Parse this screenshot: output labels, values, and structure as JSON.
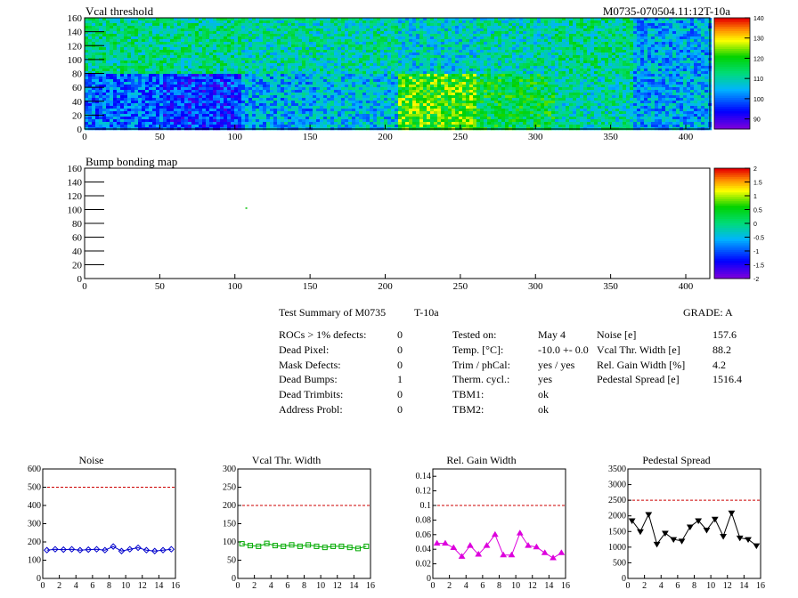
{
  "maps": [
    {
      "title": "Vcal threshold",
      "corner": "M0735-070504.11:12T-10a",
      "xticks": [
        0,
        50,
        100,
        150,
        200,
        250,
        300,
        350,
        400
      ],
      "yticks": [
        0,
        20,
        40,
        60,
        80,
        100,
        120,
        140,
        160
      ],
      "xlim": [
        0,
        416
      ],
      "ylim": [
        0,
        160
      ],
      "palette_labels": [
        "140",
        "130",
        "120",
        "110",
        "100",
        "90"
      ],
      "palette_range": [
        85,
        140
      ]
    },
    {
      "title": "Bump bonding map",
      "corner": "",
      "xticks": [
        0,
        50,
        100,
        150,
        200,
        250,
        300,
        350,
        400
      ],
      "yticks": [
        0,
        20,
        40,
        60,
        80,
        100,
        120,
        140,
        160
      ],
      "xlim": [
        0,
        416
      ],
      "ylim": [
        0,
        160
      ],
      "palette_labels": [
        "2",
        "1.5",
        "1",
        "0.5",
        "0",
        "-0.5",
        "-1",
        "-1.5",
        "-2"
      ],
      "palette_range": [
        -2,
        2
      ]
    }
  ],
  "summary": {
    "title": "Test Summary of M0735",
    "temp_tag": "T-10a",
    "grade": "GRADE:  A",
    "defects": [
      {
        "label": "ROCs > 1% defects:",
        "value": "0"
      },
      {
        "label": "Dead Pixel:",
        "value": "0"
      },
      {
        "label": "Mask Defects:",
        "value": "0"
      },
      {
        "label": "Dead Bumps:",
        "value": "1"
      },
      {
        "label": "Dead Trimbits:",
        "value": "0"
      },
      {
        "label": "Address Probl:",
        "value": "0"
      }
    ],
    "conditions": [
      {
        "label": "Tested on:",
        "value": "May 4"
      },
      {
        "label": "Temp. [°C]:",
        "value": "-10.0 +- 0.0"
      },
      {
        "label": "Trim / phCal:",
        "value": "yes / yes"
      },
      {
        "label": "Therm. cycl.:",
        "value": "yes"
      },
      {
        "label": "TBM1:",
        "value": "ok"
      },
      {
        "label": "TBM2:",
        "value": "ok"
      }
    ],
    "results": [
      {
        "label": "Noise [e]",
        "value": "157.6"
      },
      {
        "label": "Vcal Thr. Width [e]",
        "value": "88.2"
      },
      {
        "label": "Rel. Gain Width [%]",
        "value": "4.2"
      },
      {
        "label": "Pedestal Spread [e]",
        "value": "1516.4"
      }
    ]
  },
  "chart_data": [
    {
      "type": "line",
      "title": "Noise",
      "x": [
        0.5,
        1.5,
        2.5,
        3.5,
        4.5,
        5.5,
        6.5,
        7.5,
        8.5,
        9.5,
        10.5,
        11.5,
        12.5,
        13.5,
        14.5,
        15.5
      ],
      "values": [
        155,
        160,
        158,
        160,
        155,
        158,
        160,
        155,
        175,
        150,
        160,
        168,
        155,
        150,
        155,
        160
      ],
      "ylim": [
        0,
        600
      ],
      "yticks": [
        0,
        100,
        200,
        300,
        400,
        500,
        600
      ],
      "yticklabels": [
        "0",
        "100",
        "200",
        "300",
        "400",
        "500",
        "600"
      ],
      "xticks": [
        0,
        2,
        4,
        6,
        8,
        10,
        12,
        14,
        16
      ],
      "threshold": 500,
      "color": "#0000cc",
      "marker": "diamond"
    },
    {
      "type": "line",
      "title": "Vcal Thr. Width",
      "x": [
        0.5,
        1.5,
        2.5,
        3.5,
        4.5,
        5.5,
        6.5,
        7.5,
        8.5,
        9.5,
        10.5,
        11.5,
        12.5,
        13.5,
        14.5,
        15.5
      ],
      "values": [
        95,
        90,
        88,
        96,
        90,
        88,
        92,
        88,
        92,
        88,
        85,
        88,
        88,
        85,
        82,
        88
      ],
      "ylim": [
        0,
        300
      ],
      "yticks": [
        0,
        50,
        100,
        150,
        200,
        250,
        300
      ],
      "yticklabels": [
        "0",
        "50",
        "100",
        "150",
        "200",
        "250",
        "300"
      ],
      "xticks": [
        0,
        2,
        4,
        6,
        8,
        10,
        12,
        14,
        16
      ],
      "threshold": 200,
      "color": "#00aa00",
      "marker": "square"
    },
    {
      "type": "line",
      "title": "Rel. Gain Width",
      "x": [
        0.5,
        1.5,
        2.5,
        3.5,
        4.5,
        5.5,
        6.5,
        7.5,
        8.5,
        9.5,
        10.5,
        11.5,
        12.5,
        13.5,
        14.5,
        15.5
      ],
      "values": [
        0.048,
        0.048,
        0.042,
        0.03,
        0.045,
        0.033,
        0.045,
        0.06,
        0.032,
        0.032,
        0.062,
        0.045,
        0.043,
        0.035,
        0.028,
        0.035
      ],
      "ylim": [
        0,
        0.15
      ],
      "yticks": [
        0,
        0.02,
        0.04,
        0.06,
        0.08,
        0.1,
        0.12,
        0.14
      ],
      "yticklabels": [
        "0",
        "0.02",
        "0.04",
        "0.06",
        "0.08",
        "0.1",
        "0.12",
        "0.14"
      ],
      "xticks": [
        0,
        2,
        4,
        6,
        8,
        10,
        12,
        14,
        16
      ],
      "threshold": 0.1,
      "color": "#dd00dd",
      "marker": "triangle"
    },
    {
      "type": "line",
      "title": "Pedestal Spread",
      "x": [
        0.5,
        1.5,
        2.5,
        3.5,
        4.5,
        5.5,
        6.5,
        7.5,
        8.5,
        9.5,
        10.5,
        11.5,
        12.5,
        13.5,
        14.5,
        15.5
      ],
      "values": [
        1850,
        1500,
        2050,
        1100,
        1450,
        1250,
        1200,
        1650,
        1850,
        1550,
        1900,
        1350,
        2100,
        1300,
        1250,
        1050
      ],
      "ylim": [
        0,
        3500
      ],
      "yticks": [
        0,
        500,
        1000,
        1500,
        2000,
        2500,
        3000,
        3500
      ],
      "yticklabels": [
        "0",
        "500",
        "1000",
        "1500",
        "2000",
        "2500",
        "3000",
        "3500"
      ],
      "xticks": [
        0,
        2,
        4,
        6,
        8,
        10,
        12,
        14,
        16
      ],
      "threshold": 2500,
      "color": "#000000",
      "marker": "triangle-down"
    }
  ]
}
